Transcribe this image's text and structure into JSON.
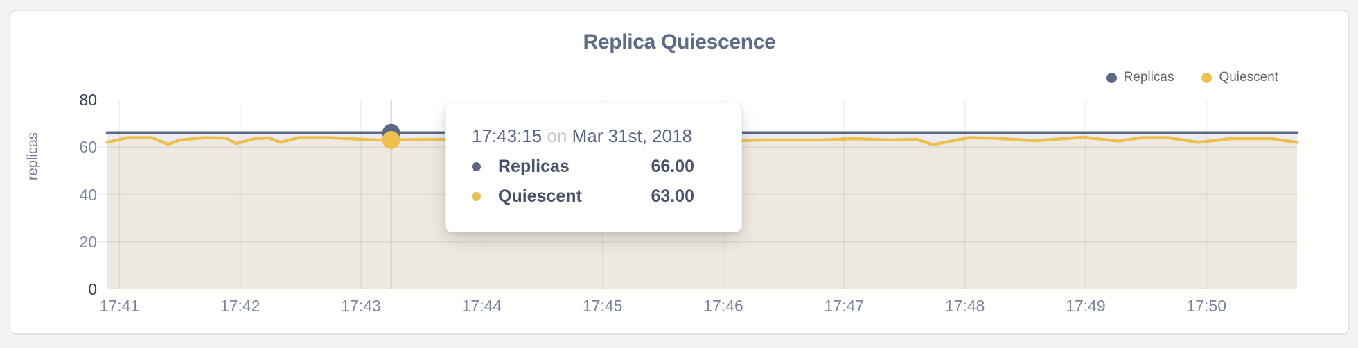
{
  "page": {
    "background": "#f4f4f6"
  },
  "panel": {
    "title": "Replica Quiescence"
  },
  "legend": {
    "items": [
      {
        "label": "Replicas",
        "color": "#5c6884"
      },
      {
        "label": "Quiescent",
        "color": "#edbf4d"
      }
    ]
  },
  "tooltip": {
    "time": "17:43:15",
    "conjunction": "on",
    "date": "Mar 31st, 2018",
    "rows": [
      {
        "label": "Replicas",
        "value": "66.00",
        "color": "#5c6884"
      },
      {
        "label": "Quiescent",
        "value": "63.00",
        "color": "#edbf4d"
      }
    ]
  },
  "chart_data": {
    "type": "line",
    "title": "Replica Quiescence",
    "xlabel": "",
    "ylabel": "replicas",
    "ylim": [
      0,
      80
    ],
    "yticks": [
      0,
      20,
      40,
      60,
      80
    ],
    "grid": true,
    "legend_position": "top-right",
    "date": "Mar 31st, 2018",
    "t_domain": [
      -6,
      585
    ],
    "x_ticks": [
      {
        "t": 0,
        "label": "17:41"
      },
      {
        "t": 60,
        "label": "17:42"
      },
      {
        "t": 120,
        "label": "17:43"
      },
      {
        "t": 180,
        "label": "17:44"
      },
      {
        "t": 240,
        "label": "17:45"
      },
      {
        "t": 300,
        "label": "17:46"
      },
      {
        "t": 360,
        "label": "17:47"
      },
      {
        "t": 420,
        "label": "17:48"
      },
      {
        "t": 480,
        "label": "17:49"
      },
      {
        "t": 540,
        "label": "17:50"
      }
    ],
    "series": [
      {
        "name": "Replicas",
        "color": "#5c6884",
        "fill": "#e9ecf2",
        "points": [
          [
            -6,
            66
          ],
          [
            585,
            66
          ]
        ]
      },
      {
        "name": "Quiescent",
        "color": "#edbf4d",
        "fill": "#eeeae1",
        "points": [
          [
            -6,
            62.0
          ],
          [
            4,
            64.0
          ],
          [
            16,
            64.0
          ],
          [
            24,
            61.2
          ],
          [
            30,
            63.0
          ],
          [
            42,
            64.0
          ],
          [
            53,
            63.8
          ],
          [
            58,
            61.5
          ],
          [
            67,
            63.6
          ],
          [
            74,
            63.9
          ],
          [
            80,
            62.0
          ],
          [
            89,
            64.0
          ],
          [
            105,
            64.0
          ],
          [
            120,
            63.3
          ],
          [
            128,
            63.0
          ],
          [
            135,
            63.0
          ],
          [
            150,
            63.2
          ],
          [
            165,
            63.3
          ],
          [
            182,
            63.2
          ],
          [
            199,
            63.4
          ],
          [
            215,
            62.6
          ],
          [
            230,
            63.8
          ],
          [
            245,
            63.2
          ],
          [
            260,
            63.6
          ],
          [
            275,
            63.0
          ],
          [
            290,
            63.4
          ],
          [
            302,
            62.5
          ],
          [
            317,
            63.0
          ],
          [
            334,
            63.0
          ],
          [
            348,
            63.0
          ],
          [
            365,
            63.6
          ],
          [
            382,
            63.0
          ],
          [
            396,
            63.3
          ],
          [
            404,
            61.0
          ],
          [
            422,
            64.0
          ],
          [
            434,
            63.8
          ],
          [
            455,
            62.7
          ],
          [
            479,
            64.2
          ],
          [
            496,
            62.5
          ],
          [
            508,
            64.0
          ],
          [
            521,
            64.0
          ],
          [
            536,
            62.0
          ],
          [
            552,
            63.6
          ],
          [
            572,
            63.6
          ],
          [
            585,
            62.0
          ]
        ]
      }
    ],
    "hover": {
      "t": 135,
      "time": "17:43:15",
      "values": {
        "Replicas": 66.0,
        "Quiescent": 63.0
      }
    }
  }
}
